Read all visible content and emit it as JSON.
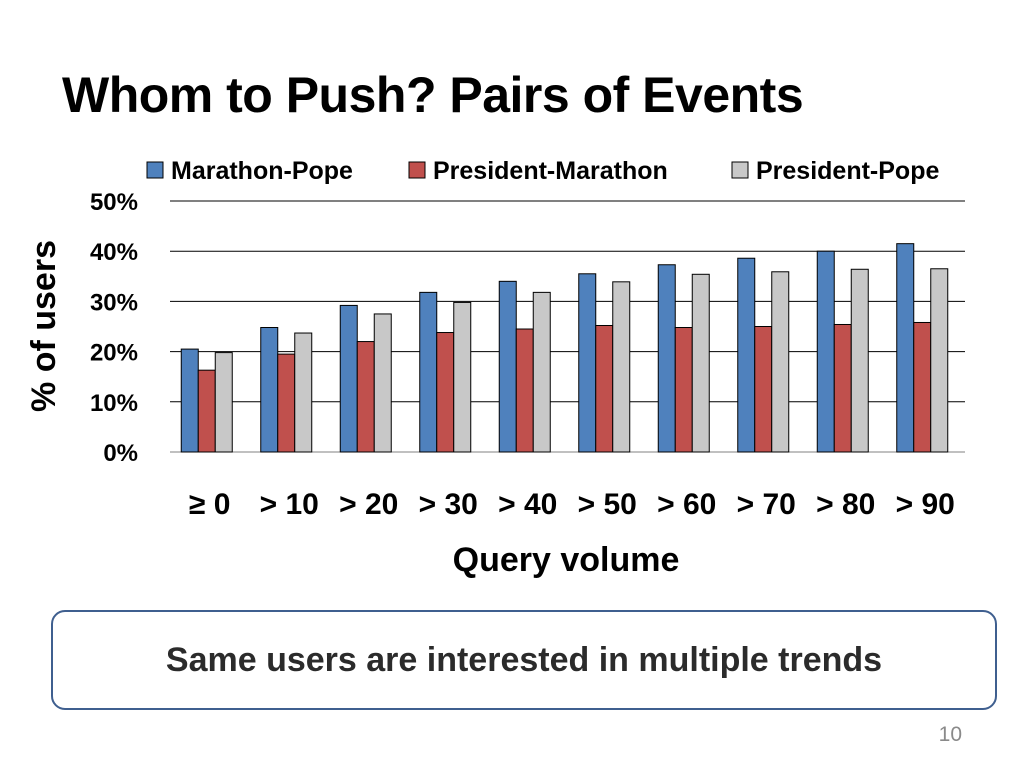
{
  "slide": {
    "title": "Whom to Push? Pairs of Events",
    "callout": "Same users are interested in multiple trends",
    "page_number": "10"
  },
  "chart_data": {
    "type": "bar",
    "title": "",
    "xlabel": "Query volume",
    "ylabel": "% of users",
    "ylim": [
      0,
      50
    ],
    "yticks": [
      "0%",
      "10%",
      "20%",
      "30%",
      "40%",
      "50%"
    ],
    "categories": [
      "≥ 0",
      "> 10",
      "> 20",
      "> 30",
      "> 40",
      "> 50",
      "> 60",
      "> 70",
      "> 80",
      "> 90"
    ],
    "grid": true,
    "legend_position": "top",
    "series": [
      {
        "name": "Marathon-Pope",
        "color": "#4f81bd",
        "values": [
          20.5,
          24.8,
          29.2,
          31.8,
          34.0,
          35.5,
          37.3,
          38.6,
          40.0,
          41.5
        ]
      },
      {
        "name": "President-Marathon",
        "color": "#c0504d",
        "values": [
          16.3,
          19.5,
          22.0,
          23.8,
          24.5,
          25.2,
          24.8,
          25.0,
          25.4,
          25.8
        ]
      },
      {
        "name": "President-Pope",
        "color": "#c8c8c8",
        "values": [
          19.8,
          23.7,
          27.5,
          29.8,
          31.8,
          33.9,
          35.4,
          35.9,
          36.4,
          36.5
        ]
      }
    ]
  }
}
